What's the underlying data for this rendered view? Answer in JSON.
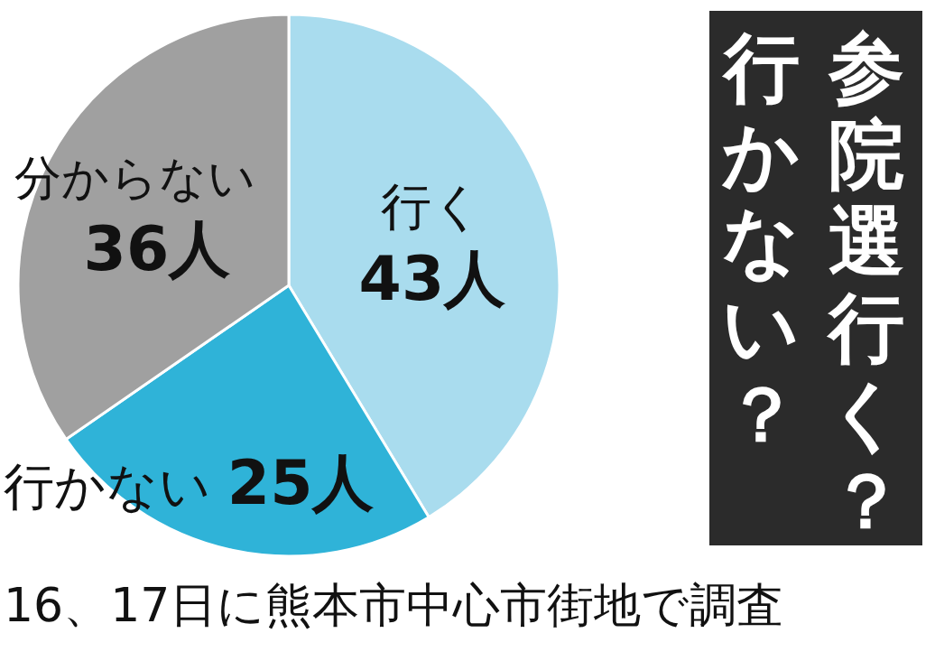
{
  "chart_data": {
    "type": "pie",
    "title": "参院選行く？行かない？",
    "categories": [
      "行く",
      "行かない",
      "分からない"
    ],
    "values": [
      43,
      25,
      36
    ],
    "value_labels": [
      "43人",
      "25人",
      "36人"
    ],
    "colors": [
      "#a9dcee",
      "#2fb3d8",
      "#a0a0a0"
    ],
    "annotations": [
      "16、17日に熊本市中心市街地で調査"
    ]
  }
}
